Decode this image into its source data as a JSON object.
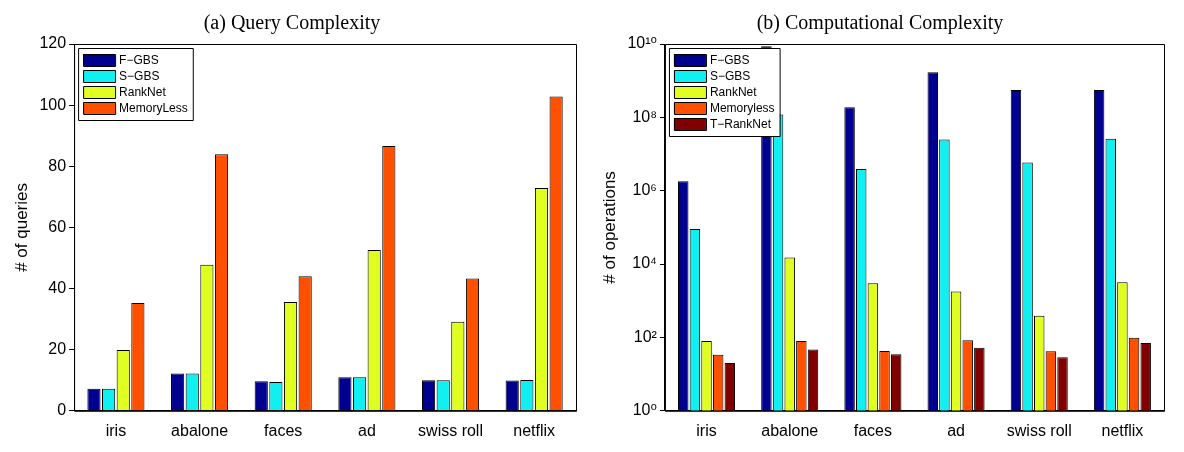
{
  "chart_data": [
    {
      "type": "bar",
      "title": "(a) Query Complexity",
      "ylabel": "# of queries",
      "categories": [
        "iris",
        "abalone",
        "faces",
        "ad",
        "swiss roll",
        "netflix"
      ],
      "ylim": [
        0,
        120
      ],
      "yticks": [
        0,
        20,
        40,
        60,
        80,
        100,
        120
      ],
      "grid": false,
      "legend": "top left",
      "series": [
        {
          "name": "F−GBS",
          "color": "#000090",
          "values": [
            7.2,
            12.2,
            9.7,
            11,
            10,
            9.9
          ]
        },
        {
          "name": "S−GBS",
          "color": "#10f0f0",
          "values": [
            7.2,
            12.2,
            9.4,
            11,
            10,
            10.1
          ]
        },
        {
          "name": "RankNet",
          "color": "#e0ff20",
          "values": [
            19.9,
            47.8,
            35.6,
            52.6,
            29.1,
            72.9
          ]
        },
        {
          "name": "MemoryLess",
          "color": "#ff5000",
          "values": [
            35.3,
            83.9,
            44,
            86.6,
            43.3,
            102.8
          ]
        }
      ]
    },
    {
      "type": "bar",
      "title": "(b) Computational Complexity",
      "ylabel": "# of operations",
      "categories": [
        "iris",
        "abalone",
        "faces",
        "ad",
        "swiss roll",
        "netflix"
      ],
      "log": "y",
      "ylim": [
        1,
        10000000000
      ],
      "yticks": [
        {
          "value": 1,
          "label": "10⁰"
        },
        {
          "value": 100,
          "label": "10²"
        },
        {
          "value": 10000,
          "label": "10⁴"
        },
        {
          "value": 1000000,
          "label": "10⁶"
        },
        {
          "value": 100000000,
          "label": "10⁸"
        },
        {
          "value": 10000000000,
          "label": "10¹⁰"
        }
      ],
      "grid": false,
      "legend": "top left",
      "series": [
        {
          "name": "F−GBS",
          "color": "#000090",
          "values": [
            1800000,
            8700000000,
            190000000,
            1700000000,
            560000000,
            560000000
          ]
        },
        {
          "name": "S−GBS",
          "color": "#10f0f0",
          "values": [
            90000,
            120000000,
            3900000,
            25000000,
            5900000,
            26000000
          ]
        },
        {
          "name": "RankNet",
          "color": "#e0ff20",
          "values": [
            80,
            15000,
            3000,
            1800,
            390,
            3200
          ]
        },
        {
          "name": "Memoryless",
          "color": "#ff5000",
          "values": [
            34,
            80,
            43,
            84,
            42,
            98
          ]
        },
        {
          "name": "T−RankNet",
          "color": "#800000",
          "values": [
            20,
            47,
            35,
            52,
            29,
            71
          ]
        }
      ]
    }
  ]
}
